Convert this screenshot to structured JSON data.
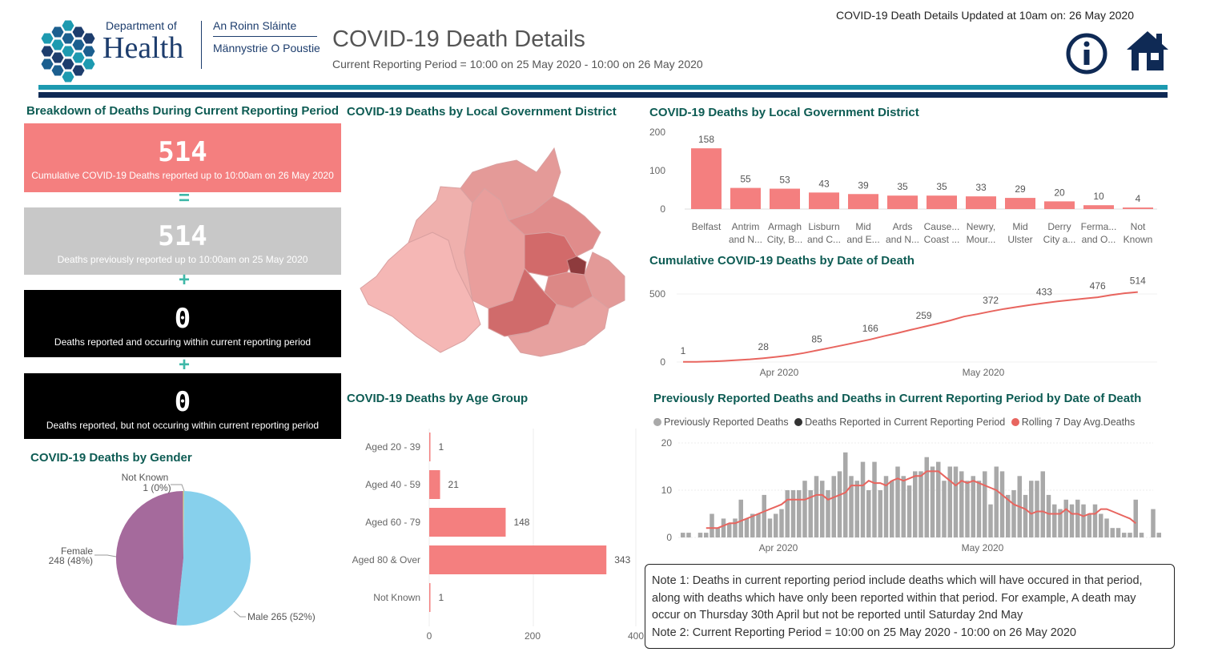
{
  "header": {
    "logo_line1": "Department of",
    "logo_line2": "Health",
    "irish_line1": "An Roinn Sláinte",
    "irish_line2": "Männystrie O Poustie",
    "title": "COVID-19 Death Details",
    "subtitle": "Current Reporting Period = 10:00 on 25 May 2020 - 10:00 on 26 May 2020",
    "updated": "COVID-19 Death Details Updated at 10am on: 26 May 2020",
    "info_icon": "info-icon",
    "home_icon": "home-icon"
  },
  "colors": {
    "accent_teal": "#1d9ab0",
    "navy": "#0f2a55",
    "salmon": "#f47f7f",
    "grey_card": "#c8c8c8",
    "male": "#87d0ec",
    "female": "#a56a9c",
    "line": "#e8655f"
  },
  "breakdown": {
    "title": "Breakdown of Deaths During Current Reporting Period",
    "cards": [
      {
        "value": "514",
        "label": "Cumulative COVID-19 Deaths reported up to 10:00am on 26 May 2020"
      },
      {
        "value": "514",
        "label": "Deaths previously reported up to 10:00am on 25 May 2020"
      },
      {
        "value": "0",
        "label": "Deaths reported and occuring within current reporting period"
      },
      {
        "value": "0",
        "label": "Deaths reported, but not occuring within current reporting period"
      }
    ],
    "op_equals": "=",
    "op_plus": "+"
  },
  "map": {
    "title": "COVID-19 Deaths by Local Government District"
  },
  "chart_data": [
    {
      "type": "bar",
      "title": "COVID-19 Deaths by Local Government District",
      "categories": [
        "Belfast",
        "Antrim and N...",
        "Armagh City, B...",
        "Lisburn and C...",
        "Mid and E...",
        "Ards and N...",
        "Cause... Coast ...",
        "Newry, Mour...",
        "Mid Ulster",
        "Derry City a...",
        "Ferma... and O...",
        "Not Known"
      ],
      "category_lines": [
        [
          "Belfast",
          ""
        ],
        [
          "Antrim",
          "and N..."
        ],
        [
          "Armagh",
          "City, B..."
        ],
        [
          "Lisburn",
          "and C..."
        ],
        [
          "Mid",
          "and E..."
        ],
        [
          "Ards",
          "and N..."
        ],
        [
          "Cause...",
          "Coast ..."
        ],
        [
          "Newry,",
          "Mour..."
        ],
        [
          "Mid",
          "Ulster"
        ],
        [
          "Derry",
          "City a..."
        ],
        [
          "Ferma...",
          "and O..."
        ],
        [
          "Not",
          "Known"
        ]
      ],
      "values": [
        158,
        55,
        53,
        43,
        39,
        35,
        35,
        33,
        29,
        20,
        10,
        4
      ],
      "yticks": [
        "0",
        "100",
        "200"
      ],
      "ylim": [
        0,
        200
      ]
    },
    {
      "type": "line",
      "title": "Cumulative COVID-19 Deaths by Date of Death",
      "x": [
        "2020-03-18",
        "2020-03-20",
        "2020-03-22",
        "2020-03-24",
        "2020-03-26",
        "2020-03-28",
        "2020-03-30",
        "2020-04-01",
        "2020-04-03",
        "2020-04-05",
        "2020-04-07",
        "2020-04-09",
        "2020-04-11",
        "2020-04-13",
        "2020-04-15",
        "2020-04-17",
        "2020-04-19",
        "2020-04-21",
        "2020-04-23",
        "2020-04-25",
        "2020-04-27",
        "2020-04-29",
        "2020-05-01",
        "2020-05-03",
        "2020-05-05",
        "2020-05-07",
        "2020-05-09",
        "2020-05-11",
        "2020-05-13",
        "2020-05-15",
        "2020-05-17",
        "2020-05-19",
        "2020-05-21",
        "2020-05-23",
        "2020-05-25"
      ],
      "values": [
        1,
        2,
        4,
        8,
        14,
        20,
        28,
        38,
        50,
        66,
        85,
        105,
        125,
        145,
        166,
        190,
        212,
        236,
        259,
        282,
        306,
        334,
        352,
        372,
        390,
        405,
        420,
        433,
        445,
        456,
        466,
        476,
        492,
        505,
        514
      ],
      "labels": [
        {
          "x": "2020-03-18",
          "v": "1"
        },
        {
          "x": "2020-03-30",
          "v": "28"
        },
        {
          "x": "2020-04-07",
          "v": "85"
        },
        {
          "x": "2020-04-15",
          "v": "166"
        },
        {
          "x": "2020-04-23",
          "v": "259"
        },
        {
          "x": "2020-05-03",
          "v": "372"
        },
        {
          "x": "2020-05-11",
          "v": "433"
        },
        {
          "x": "2020-05-19",
          "v": "476"
        },
        {
          "x": "2020-05-25",
          "v": "514"
        }
      ],
      "yticks": [
        "0",
        "500"
      ],
      "xticks": [
        "Apr 2020",
        "May 2020"
      ],
      "ylim": [
        0,
        530
      ]
    },
    {
      "type": "bar",
      "title": "COVID-19 Deaths by Age Group",
      "orientation": "horizontal",
      "categories": [
        "Aged 20 - 39",
        "Aged 40 - 59",
        "Aged 60 - 79",
        "Aged 80 & Over",
        "Not Known"
      ],
      "values": [
        1,
        21,
        148,
        343,
        1
      ],
      "xticks": [
        "0",
        "200",
        "400"
      ],
      "xlim": [
        0,
        400
      ]
    },
    {
      "type": "pie",
      "title": "COVID-19 Deaths by Gender",
      "slices": [
        {
          "name": "Male",
          "value": 265,
          "label": "Male 265 (52%)",
          "color": "#87d0ec"
        },
        {
          "name": "Female",
          "value": 248,
          "label_line1": "Female",
          "label_line2": "248 (48%)",
          "color": "#a56a9c"
        },
        {
          "name": "Not Known",
          "value": 1,
          "label_line1": "Not Known",
          "label_line2": "1 (0%)",
          "color": "#e7d163"
        }
      ]
    },
    {
      "type": "bar",
      "title": "Previously Reported Deaths and Deaths in Current Reporting Period by Date of Death",
      "legend": [
        "Previously Reported Deaths",
        "Deaths Reported in Current Reporting Period",
        "Rolling 7 Day Avg.Deaths"
      ],
      "start_date": "2020-03-18",
      "values": [
        1,
        1,
        0,
        1,
        1,
        5,
        2,
        4,
        3,
        4,
        8,
        4,
        5,
        5,
        9,
        4,
        5,
        6,
        10,
        10,
        10,
        12,
        10,
        13,
        12,
        10,
        13,
        14,
        18,
        13,
        12,
        16,
        10,
        16,
        10,
        13,
        12,
        15,
        13,
        11,
        14,
        14,
        17,
        15,
        16,
        12,
        15,
        15,
        14,
        12,
        13,
        12,
        14,
        7,
        15,
        14,
        9,
        10,
        13,
        9,
        12,
        12,
        14,
        9,
        7,
        6,
        8,
        7,
        8,
        7,
        5,
        7,
        5,
        4,
        2,
        2,
        1,
        1,
        8,
        1,
        0,
        6,
        1
      ],
      "rolling_avg_start_index": 4,
      "rolling_avg": [
        2,
        2,
        2,
        2.5,
        3,
        3,
        3.5,
        4,
        4.5,
        5,
        5.5,
        6,
        6.5,
        7,
        8,
        8,
        8,
        8,
        8.5,
        9,
        9,
        8,
        8.5,
        9,
        9.5,
        11,
        11,
        11,
        12,
        11.5,
        11.5,
        11,
        12,
        12.5,
        12,
        12.5,
        13,
        13,
        14,
        14,
        14,
        13,
        12,
        11,
        12,
        11.5,
        12,
        11.5,
        11,
        10.5,
        10,
        9,
        8,
        7,
        6.5,
        6,
        5,
        5.5,
        5.5,
        5,
        5,
        5,
        6,
        5,
        5,
        4.5,
        5,
        5,
        6,
        6,
        5.5,
        5,
        4.5,
        4,
        3
      ],
      "yticks": [
        "0",
        "10",
        "20"
      ],
      "xticks": [
        "Apr 2020",
        "May 2020"
      ],
      "ylim": [
        0,
        20
      ]
    }
  ],
  "notes": {
    "note1_label": "Note 1:",
    "note1_text": " Deaths in current reporting period include deaths which will have occured in that period, along with deaths which have only been reported within that period. For example, A death may occur on Thursday 30th April but not be reported until Saturday 2nd May",
    "note2_label": "Note 2:",
    "note2_text": " Current Reporting Period = 10:00 on 25 May 2020 - 10:00 on 26 May 2020"
  }
}
